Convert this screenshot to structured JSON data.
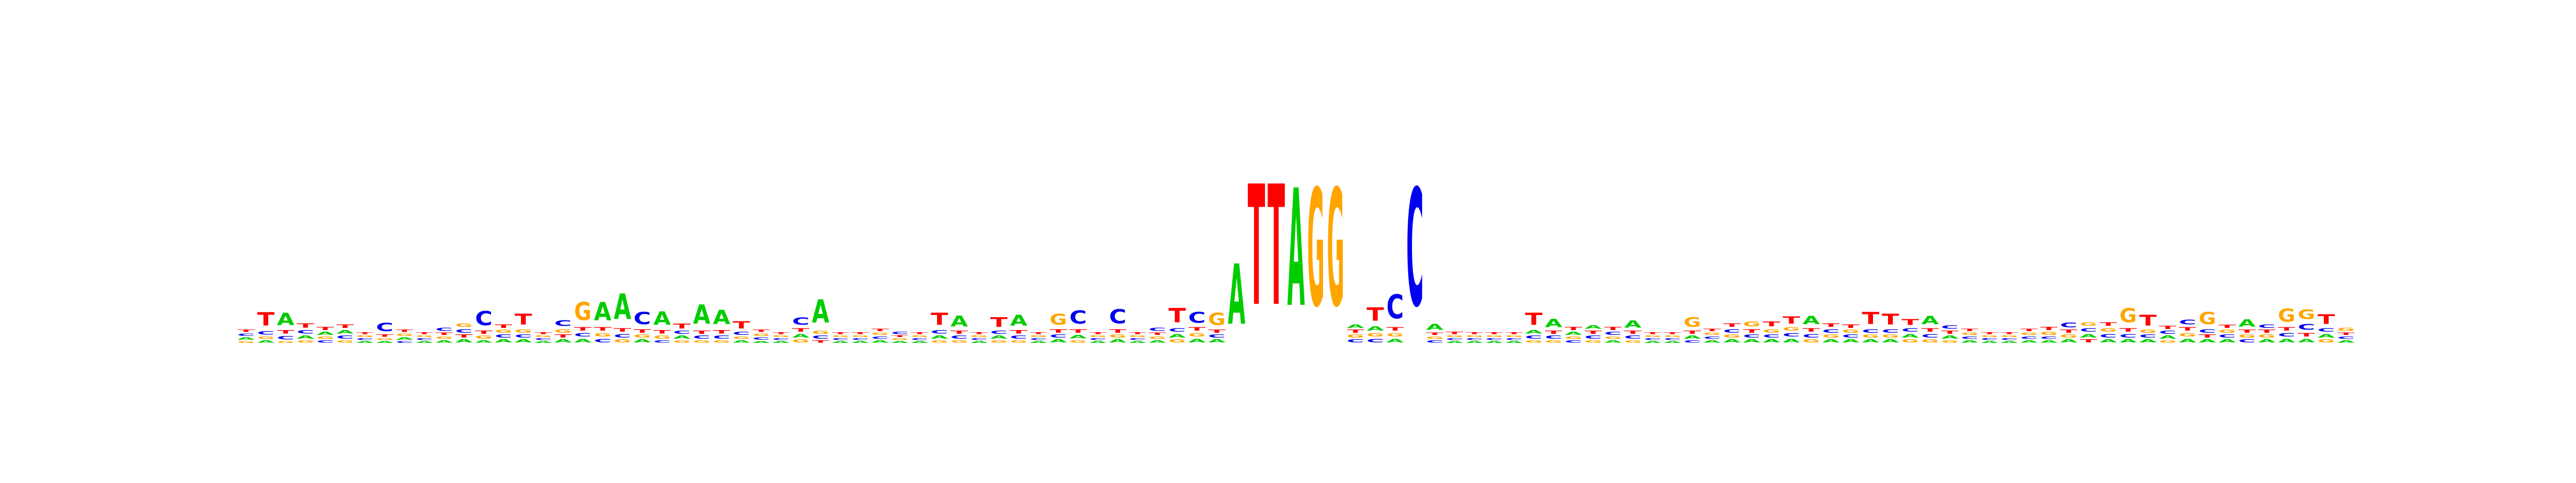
{
  "chart_data": {
    "type": "sequence-logo",
    "alphabet": [
      "A",
      "C",
      "G",
      "T"
    ],
    "colors": {
      "A": "#00cc00",
      "C": "#0000ee",
      "G": "#ffa500",
      "T": "#ff0000"
    },
    "ylim": [
      0,
      2
    ],
    "positions": [
      {
        "A": 0.04,
        "C": 0.04,
        "G": 0.03,
        "T": 0.04
      },
      {
        "A": 0.04,
        "C": 0.06,
        "G": 0.04,
        "T": 0.22
      },
      {
        "A": 0.2,
        "C": 0.06,
        "G": 0.03,
        "T": 0.06
      },
      {
        "A": 0.05,
        "C": 0.06,
        "G": 0.04,
        "T": 0.07
      },
      {
        "A": 0.05,
        "C": 0.04,
        "G": 0.04,
        "T": 0.05
      },
      {
        "A": 0.06,
        "C": 0.05,
        "G": 0.04,
        "T": 0.06
      },
      {
        "A": 0.03,
        "C": 0.03,
        "G": 0.03,
        "T": 0.03
      },
      {
        "A": 0.03,
        "C": 0.14,
        "G": 0.03,
        "T": 0.04
      },
      {
        "A": 0.04,
        "C": 0.03,
        "G": 0.04,
        "T": 0.04
      },
      {
        "A": 0.03,
        "C": 0.03,
        "G": 0.03,
        "T": 0.03
      },
      {
        "A": 0.04,
        "C": 0.05,
        "G": 0.04,
        "T": 0.04
      },
      {
        "A": 0.05,
        "C": 0.06,
        "G": 0.06,
        "T": 0.05
      },
      {
        "A": 0.04,
        "C": 0.24,
        "G": 0.05,
        "T": 0.05
      },
      {
        "A": 0.05,
        "C": 0.05,
        "G": 0.05,
        "T": 0.06
      },
      {
        "A": 0.05,
        "C": 0.05,
        "G": 0.06,
        "T": 0.18
      },
      {
        "A": 0.03,
        "C": 0.03,
        "G": 0.03,
        "T": 0.03
      },
      {
        "A": 0.05,
        "C": 0.1,
        "G": 0.06,
        "T": 0.05
      },
      {
        "A": 0.06,
        "C": 0.06,
        "G": 0.3,
        "T": 0.06
      },
      {
        "A": 0.3,
        "C": 0.06,
        "G": 0.06,
        "T": 0.06
      },
      {
        "A": 0.42,
        "C": 0.06,
        "G": 0.05,
        "T": 0.06
      },
      {
        "A": 0.05,
        "C": 0.2,
        "G": 0.05,
        "T": 0.06
      },
      {
        "A": 0.22,
        "C": 0.04,
        "G": 0.05,
        "T": 0.06
      },
      {
        "A": 0.05,
        "C": 0.05,
        "G": 0.04,
        "T": 0.08
      },
      {
        "A": 0.32,
        "C": 0.05,
        "G": 0.04,
        "T": 0.05
      },
      {
        "A": 0.24,
        "C": 0.05,
        "G": 0.04,
        "T": 0.06
      },
      {
        "A": 0.04,
        "C": 0.05,
        "G": 0.04,
        "T": 0.12
      },
      {
        "A": 0.03,
        "C": 0.04,
        "G": 0.04,
        "T": 0.04
      },
      {
        "A": 0.03,
        "C": 0.03,
        "G": 0.03,
        "T": 0.03
      },
      {
        "A": 0.06,
        "C": 0.12,
        "G": 0.05,
        "T": 0.06
      },
      {
        "A": 0.38,
        "C": 0.05,
        "G": 0.05,
        "T": 0.04
      },
      {
        "A": 0.03,
        "C": 0.03,
        "G": 0.03,
        "T": 0.03
      },
      {
        "A": 0.03,
        "C": 0.03,
        "G": 0.03,
        "T": 0.03
      },
      {
        "A": 0.04,
        "C": 0.04,
        "G": 0.04,
        "T": 0.04
      },
      {
        "A": 0.03,
        "C": 0.04,
        "G": 0.03,
        "T": 0.03
      },
      {
        "A": 0.03,
        "C": 0.03,
        "G": 0.03,
        "T": 0.03
      },
      {
        "A": 0.05,
        "C": 0.06,
        "G": 0.04,
        "T": 0.2
      },
      {
        "A": 0.18,
        "C": 0.05,
        "G": 0.04,
        "T": 0.05
      },
      {
        "A": 0.03,
        "C": 0.03,
        "G": 0.03,
        "T": 0.03
      },
      {
        "A": 0.05,
        "C": 0.05,
        "G": 0.04,
        "T": 0.16
      },
      {
        "A": 0.18,
        "C": 0.05,
        "G": 0.04,
        "T": 0.06
      },
      {
        "A": 0.03,
        "C": 0.03,
        "G": 0.03,
        "T": 0.03
      },
      {
        "A": 0.05,
        "C": 0.05,
        "G": 0.18,
        "T": 0.06
      },
      {
        "A": 0.06,
        "C": 0.22,
        "G": 0.04,
        "T": 0.06
      },
      {
        "A": 0.03,
        "C": 0.03,
        "G": 0.03,
        "T": 0.03
      },
      {
        "A": 0.05,
        "C": 0.24,
        "G": 0.05,
        "T": 0.06
      },
      {
        "A": 0.03,
        "C": 0.03,
        "G": 0.03,
        "T": 0.03
      },
      {
        "A": 0.04,
        "C": 0.05,
        "G": 0.04,
        "T": 0.04
      },
      {
        "A": 0.06,
        "C": 0.06,
        "G": 0.05,
        "T": 0.24
      },
      {
        "A": 0.06,
        "C": 0.18,
        "G": 0.06,
        "T": 0.06
      },
      {
        "A": 0.05,
        "C": 0.05,
        "G": 0.2,
        "T": 0.05
      },
      {
        "A": 1.0,
        "C": 0.0,
        "G": 0.0,
        "T": 0.0
      },
      {
        "A": 0.0,
        "C": 0.0,
        "G": 0.0,
        "T": 2.0
      },
      {
        "A": 0.0,
        "C": 0.0,
        "G": 0.0,
        "T": 2.0
      },
      {
        "A": 1.95,
        "C": 0.0,
        "G": 0.0,
        "T": 0.0
      },
      {
        "A": 0.0,
        "C": 0.0,
        "G": 1.95,
        "T": 0.0
      },
      {
        "A": 0.0,
        "C": 0.0,
        "G": 1.95,
        "T": 0.0
      },
      {
        "A": 0.06,
        "C": 0.05,
        "G": 0.05,
        "T": 0.05
      },
      {
        "A": 0.07,
        "C": 0.06,
        "G": 0.06,
        "T": 0.22
      },
      {
        "A": 0.06,
        "C": 0.4,
        "G": 0.06,
        "T": 0.06
      },
      {
        "A": 0.0,
        "C": 1.95,
        "G": 0.0,
        "T": 0.0
      },
      {
        "A": 0.1,
        "C": 0.04,
        "G": 0.04,
        "T": 0.04
      },
      {
        "A": 0.03,
        "C": 0.03,
        "G": 0.03,
        "T": 0.04
      },
      {
        "A": 0.03,
        "C": 0.03,
        "G": 0.03,
        "T": 0.03
      },
      {
        "A": 0.03,
        "C": 0.03,
        "G": 0.03,
        "T": 0.03
      },
      {
        "A": 0.03,
        "C": 0.03,
        "G": 0.03,
        "T": 0.03
      },
      {
        "A": 0.06,
        "C": 0.05,
        "G": 0.04,
        "T": 0.2
      },
      {
        "A": 0.14,
        "C": 0.05,
        "G": 0.04,
        "T": 0.05
      },
      {
        "A": 0.05,
        "C": 0.04,
        "G": 0.04,
        "T": 0.05
      },
      {
        "A": 0.06,
        "C": 0.05,
        "G": 0.04,
        "T": 0.05
      },
      {
        "A": 0.04,
        "C": 0.05,
        "G": 0.04,
        "T": 0.05
      },
      {
        "A": 0.12,
        "C": 0.05,
        "G": 0.04,
        "T": 0.05
      },
      {
        "A": 0.03,
        "C": 0.03,
        "G": 0.03,
        "T": 0.03
      },
      {
        "A": 0.03,
        "C": 0.03,
        "G": 0.03,
        "T": 0.03
      },
      {
        "A": 0.05,
        "C": 0.04,
        "G": 0.16,
        "T": 0.05
      },
      {
        "A": 0.04,
        "C": 0.04,
        "G": 0.04,
        "T": 0.04
      },
      {
        "A": 0.05,
        "C": 0.06,
        "G": 0.05,
        "T": 0.06
      },
      {
        "A": 0.05,
        "C": 0.05,
        "G": 0.08,
        "T": 0.06
      },
      {
        "A": 0.05,
        "C": 0.05,
        "G": 0.06,
        "T": 0.08
      },
      {
        "A": 0.06,
        "C": 0.06,
        "G": 0.06,
        "T": 0.12
      },
      {
        "A": 0.14,
        "C": 0.06,
        "G": 0.05,
        "T": 0.06
      },
      {
        "A": 0.05,
        "C": 0.06,
        "G": 0.05,
        "T": 0.06
      },
      {
        "A": 0.05,
        "C": 0.05,
        "G": 0.05,
        "T": 0.06
      },
      {
        "A": 0.05,
        "C": 0.06,
        "G": 0.05,
        "T": 0.2
      },
      {
        "A": 0.05,
        "C": 0.06,
        "G": 0.05,
        "T": 0.18
      },
      {
        "A": 0.06,
        "C": 0.06,
        "G": 0.05,
        "T": 0.1
      },
      {
        "A": 0.14,
        "C": 0.06,
        "G": 0.05,
        "T": 0.06
      },
      {
        "A": 0.05,
        "C": 0.06,
        "G": 0.04,
        "T": 0.05
      },
      {
        "A": 0.04,
        "C": 0.04,
        "G": 0.04,
        "T": 0.04
      },
      {
        "A": 0.03,
        "C": 0.03,
        "G": 0.03,
        "T": 0.03
      },
      {
        "A": 0.03,
        "C": 0.03,
        "G": 0.03,
        "T": 0.03
      },
      {
        "A": 0.04,
        "C": 0.04,
        "G": 0.04,
        "T": 0.04
      },
      {
        "A": 0.04,
        "C": 0.04,
        "G": 0.05,
        "T": 0.05
      },
      {
        "A": 0.05,
        "C": 0.08,
        "G": 0.05,
        "T": 0.05
      },
      {
        "A": 0.06,
        "C": 0.06,
        "G": 0.06,
        "T": 0.05
      },
      {
        "A": 0.05,
        "C": 0.06,
        "G": 0.06,
        "T": 0.06
      },
      {
        "A": 0.05,
        "C": 0.06,
        "G": 0.24,
        "T": 0.06
      },
      {
        "A": 0.05,
        "C": 0.05,
        "G": 0.05,
        "T": 0.18
      },
      {
        "A": 0.05,
        "C": 0.05,
        "G": 0.04,
        "T": 0.05
      },
      {
        "A": 0.06,
        "C": 0.08,
        "G": 0.06,
        "T": 0.06
      },
      {
        "A": 0.05,
        "C": 0.06,
        "G": 0.2,
        "T": 0.05
      },
      {
        "A": 0.05,
        "C": 0.05,
        "G": 0.05,
        "T": 0.05
      },
      {
        "A": 0.12,
        "C": 0.05,
        "G": 0.05,
        "T": 0.05
      },
      {
        "A": 0.05,
        "C": 0.06,
        "G": 0.05,
        "T": 0.05
      },
      {
        "A": 0.06,
        "C": 0.06,
        "G": 0.22,
        "T": 0.06
      },
      {
        "A": 0.06,
        "C": 0.1,
        "G": 0.16,
        "T": 0.06
      },
      {
        "A": 0.06,
        "C": 0.06,
        "G": 0.05,
        "T": 0.16
      },
      {
        "A": 0.04,
        "C": 0.04,
        "G": 0.05,
        "T": 0.04
      }
    ]
  }
}
